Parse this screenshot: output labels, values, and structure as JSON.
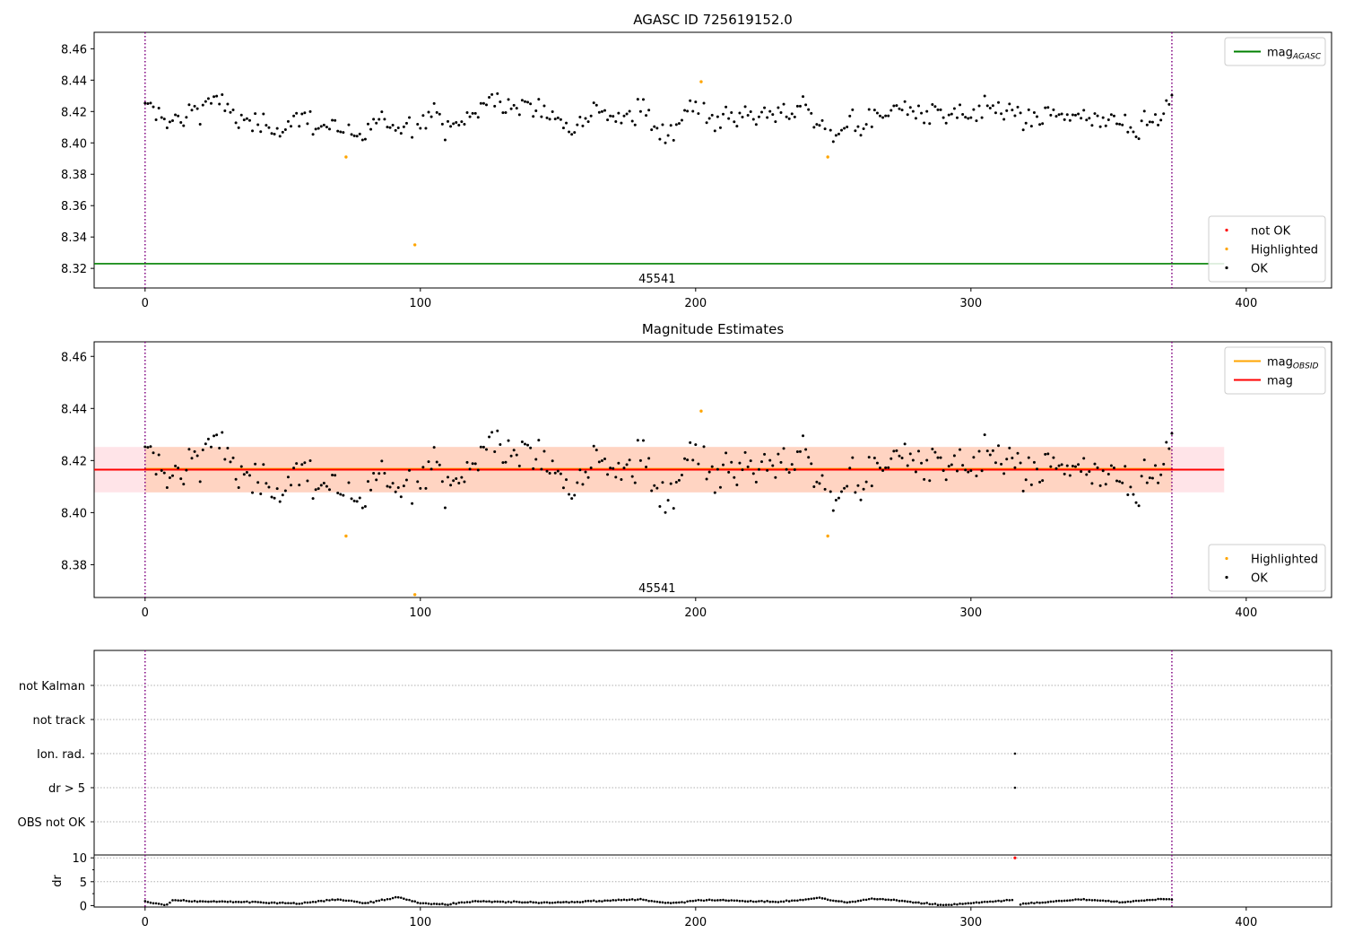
{
  "chart_data": [
    {
      "id": "agasc",
      "type": "scatter",
      "title": "AGASC ID 725619152.0",
      "xlim": [
        -18.5,
        431
      ],
      "ylim": [
        8.3075,
        8.4705
      ],
      "yticks": [
        8.32,
        8.34,
        8.36,
        8.38,
        8.4,
        8.42,
        8.44,
        8.46
      ],
      "xticks": [
        0,
        100,
        200,
        300,
        400
      ],
      "vlines": [
        0,
        373
      ],
      "obsid_label": {
        "text": "45541",
        "x": 186,
        "y": 8.3109
      },
      "hlines": [
        {
          "name": "mag_AGASC",
          "y": 8.323,
          "x": [
            -18.5,
            392
          ],
          "color": "#008000"
        }
      ],
      "highlighted": [
        [
          73,
          8.391
        ],
        [
          98,
          8.335
        ],
        [
          202,
          8.439
        ],
        [
          248,
          8.391
        ]
      ],
      "legends": [
        {
          "corner": "top-right",
          "entries": [
            {
              "label": "mag",
              "sub": "AGASC",
              "kind": "line",
              "color": "#008000"
            }
          ]
        },
        {
          "corner": "bottom-right",
          "entries": [
            {
              "label": "not OK",
              "kind": "dot",
              "color": "#ff0000"
            },
            {
              "label": "Highlighted",
              "kind": "dot",
              "color": "#ffa500"
            },
            {
              "label": "OK",
              "kind": "dot",
              "color": "#000000"
            }
          ]
        }
      ]
    },
    {
      "id": "mag_est",
      "type": "scatter",
      "title": "Magnitude Estimates",
      "xlim": [
        -18.5,
        431
      ],
      "ylim": [
        8.3674,
        8.4656
      ],
      "yticks": [
        8.38,
        8.4,
        8.42,
        8.44,
        8.46
      ],
      "xticks": [
        0,
        100,
        200,
        300,
        400
      ],
      "vlines": [
        0,
        373
      ],
      "obsid_label": {
        "text": "45541",
        "x": 186,
        "y": 8.3695
      },
      "band_outer": {
        "y": [
          8.4078,
          8.4252
        ],
        "x": [
          -18.5,
          392
        ],
        "color": "#ffe4e8"
      },
      "band_inner": {
        "y": [
          8.4078,
          8.4252
        ],
        "x": [
          0,
          373
        ],
        "color": "#ffd4c2"
      },
      "hlines": [
        {
          "name": "mag_OBSID",
          "y": 8.4168,
          "x": [
            0,
            373
          ],
          "color": "#ffa500"
        },
        {
          "name": "mag",
          "y": 8.4165,
          "x": [
            -18.5,
            392
          ],
          "color": "#ff0000"
        }
      ],
      "highlighted": [
        [
          73,
          8.391
        ],
        [
          98,
          8.3685
        ],
        [
          202,
          8.439
        ],
        [
          248,
          8.391
        ]
      ],
      "legends": [
        {
          "corner": "top-right",
          "entries": [
            {
              "label": "mag",
              "sub": "OBSID",
              "kind": "line",
              "color": "#ffa500"
            },
            {
              "label": "mag",
              "sub": "",
              "kind": "line",
              "color": "#ff0000"
            }
          ]
        },
        {
          "corner": "bottom-right",
          "entries": [
            {
              "label": "Highlighted",
              "kind": "dot",
              "color": "#ffa500"
            },
            {
              "label": "OK",
              "kind": "dot",
              "color": "#000000"
            }
          ]
        }
      ]
    },
    {
      "id": "flags",
      "type": "scatter",
      "xlim": [
        -18.5,
        431
      ],
      "categories": [
        "not Kalman",
        "not track",
        "Ion. rad.",
        "dr > 5",
        "OBS not OK"
      ],
      "flag_points": [
        [
          316,
          "Ion. rad."
        ],
        [
          316,
          "dr > 5"
        ]
      ],
      "vlines": [
        0,
        373
      ]
    },
    {
      "id": "dr",
      "type": "scatter",
      "ylabel": "dr",
      "xlim": [
        -18.5,
        431
      ],
      "ylim": [
        -0.3,
        10.6
      ],
      "yticks": [
        0,
        5,
        10
      ],
      "xticks": [
        0,
        100,
        200,
        300,
        400
      ],
      "vlines": [
        0,
        373
      ],
      "not_ok_points": [
        [
          316,
          10
        ]
      ]
    }
  ],
  "mag_series": {
    "n": 374,
    "mean": 8.4167,
    "anchors": [
      [
        0,
        8.421
      ],
      [
        5,
        8.419
      ],
      [
        10,
        8.413
      ],
      [
        20,
        8.423
      ],
      [
        25,
        8.431
      ],
      [
        30,
        8.419
      ],
      [
        40,
        8.409
      ],
      [
        50,
        8.412
      ],
      [
        55,
        8.416
      ],
      [
        65,
        8.412
      ],
      [
        70,
        8.409
      ],
      [
        78,
        8.401
      ],
      [
        85,
        8.413
      ],
      [
        95,
        8.411
      ],
      [
        105,
        8.418
      ],
      [
        112,
        8.409
      ],
      [
        125,
        8.427
      ],
      [
        135,
        8.422
      ],
      [
        145,
        8.421
      ],
      [
        155,
        8.413
      ],
      [
        165,
        8.423
      ],
      [
        175,
        8.414
      ],
      [
        180,
        8.421
      ],
      [
        187,
        8.406
      ],
      [
        195,
        8.416
      ],
      [
        200,
        8.427
      ],
      [
        206,
        8.414
      ],
      [
        220,
        8.418
      ],
      [
        230,
        8.417
      ],
      [
        240,
        8.423
      ],
      [
        248,
        8.405
      ],
      [
        255,
        8.413
      ],
      [
        265,
        8.412
      ],
      [
        272,
        8.424
      ],
      [
        285,
        8.417
      ],
      [
        300,
        8.416
      ],
      [
        310,
        8.423
      ],
      [
        320,
        8.413
      ],
      [
        335,
        8.419
      ],
      [
        345,
        8.411
      ],
      [
        355,
        8.418
      ],
      [
        362,
        8.408
      ],
      [
        368,
        8.418
      ],
      [
        373,
        8.427
      ]
    ],
    "dr_anchors": [
      [
        0,
        0.9
      ],
      [
        3,
        0.5
      ],
      [
        8,
        0.15
      ],
      [
        10,
        1.1
      ],
      [
        20,
        0.85
      ],
      [
        40,
        0.75
      ],
      [
        55,
        0.4
      ],
      [
        70,
        1.3
      ],
      [
        80,
        0.5
      ],
      [
        92,
        1.8
      ],
      [
        100,
        0.5
      ],
      [
        110,
        0.25
      ],
      [
        120,
        0.9
      ],
      [
        150,
        0.6
      ],
      [
        180,
        1.3
      ],
      [
        190,
        0.5
      ],
      [
        205,
        1.2
      ],
      [
        230,
        0.75
      ],
      [
        245,
        1.6
      ],
      [
        255,
        0.6
      ],
      [
        265,
        1.5
      ],
      [
        290,
        0.1
      ],
      [
        305,
        0.7
      ],
      [
        315,
        1.2
      ],
      [
        318,
        0.3
      ],
      [
        340,
        1.3
      ],
      [
        355,
        0.7
      ],
      [
        370,
        1.4
      ],
      [
        373,
        1.2
      ]
    ],
    "dr_gap": [
      315,
      318
    ]
  }
}
